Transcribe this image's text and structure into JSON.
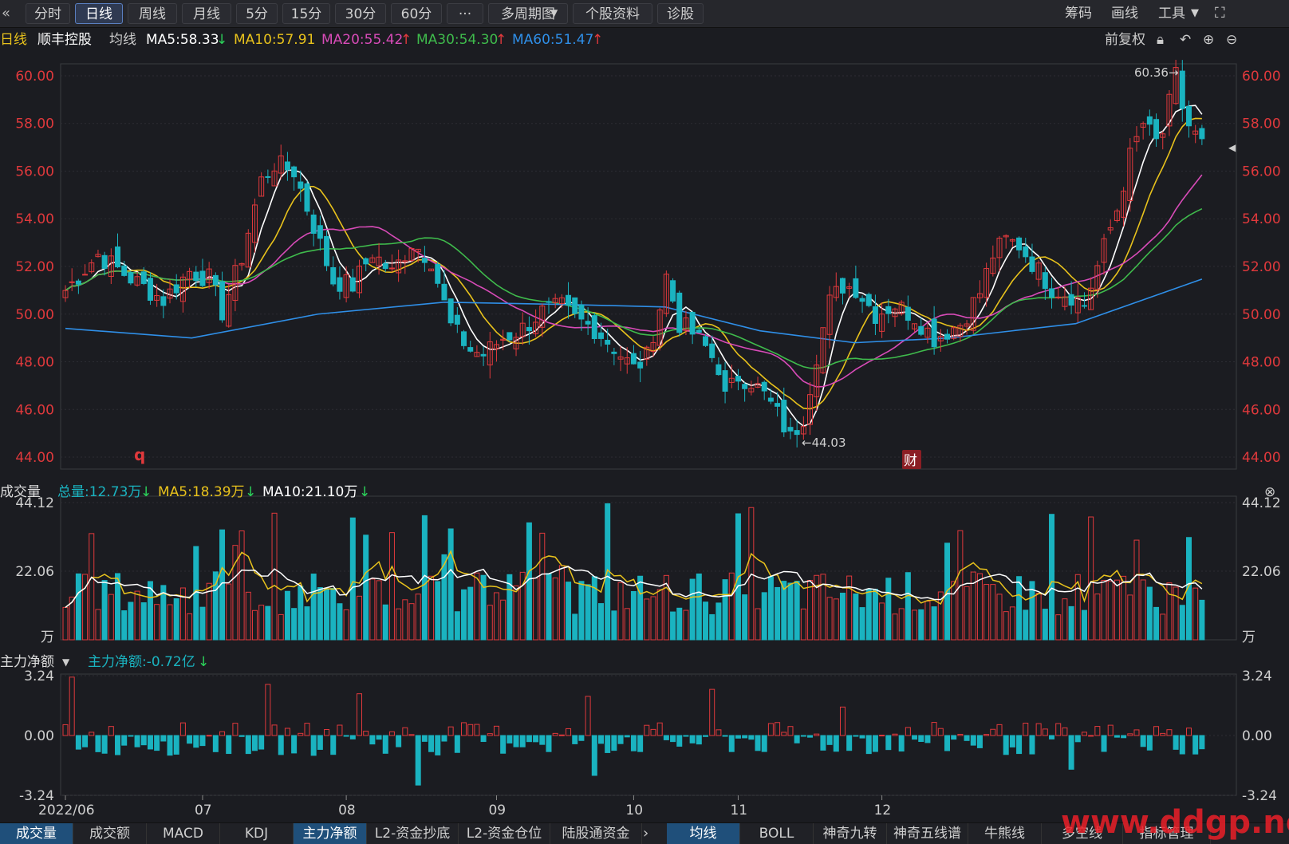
{
  "toolbar": {
    "tabs": [
      {
        "label": "分时",
        "active": false
      },
      {
        "label": "日线",
        "active": true
      },
      {
        "label": "周线",
        "active": false
      },
      {
        "label": "月线",
        "active": false
      },
      {
        "label": "5分",
        "active": false
      },
      {
        "label": "15分",
        "active": false
      },
      {
        "label": "30分",
        "active": false
      },
      {
        "label": "60分",
        "active": false
      },
      {
        "label": "···",
        "active": false
      },
      {
        "label": "多周期图",
        "active": false
      },
      {
        "label": "个股资料",
        "active": false
      },
      {
        "label": "诊股",
        "active": false
      }
    ],
    "right": [
      "筹码",
      "画线",
      "工具"
    ]
  },
  "info": {
    "period": "日线",
    "stock": "顺丰控股",
    "ma_label": "均线",
    "ma5": "MA5:58.33",
    "ma10": "MA10:57.91",
    "ma20": "MA20:55.42",
    "ma30": "MA30:54.30",
    "ma60": "MA60:51.47",
    "adjust": "前复权"
  },
  "volume_header": {
    "title": "成交量",
    "total": "总量:12.73万",
    "ma5": "MA5:18.39万",
    "ma10": "MA10:21.10万"
  },
  "flow_header": {
    "title": "主力净额",
    "value": "主力净额:-0.72亿"
  },
  "annotations": {
    "high": "60.36→",
    "low": "←44.03",
    "marker_q": "q",
    "marker_cai": "财"
  },
  "bottom_tabs_left": [
    {
      "label": "成交量",
      "active": true
    },
    {
      "label": "成交额",
      "active": false
    },
    {
      "label": "MACD",
      "active": false
    },
    {
      "label": "KDJ",
      "active": false
    },
    {
      "label": "主力净额",
      "active": true
    },
    {
      "label": "L2-资金抄底",
      "active": false
    },
    {
      "label": "L2-资金仓位",
      "active": false
    },
    {
      "label": "陆股通资金",
      "active": false
    }
  ],
  "bottom_tabs_right": [
    {
      "label": "均线",
      "active": true
    },
    {
      "label": "BOLL",
      "active": false
    },
    {
      "label": "神奇九转",
      "active": false
    },
    {
      "label": "神奇五线谱",
      "active": false
    },
    {
      "label": "牛熊线",
      "active": false
    },
    {
      "label": "多空线",
      "active": false
    },
    {
      "label": "指标管理",
      "active": false
    }
  ],
  "watermark": "www.ddgp.net",
  "colors": {
    "up": "#e0393c",
    "down": "#1ab3c0",
    "ma5": "#ffffff",
    "ma10": "#e8c21c",
    "ma20": "#d84bb8",
    "ma30": "#3fbb4c",
    "ma60": "#2f8fe8"
  },
  "chart_data": [
    {
      "type": "candlestick",
      "title": "日线 顺丰控股",
      "y_ticks": [
        "60.00",
        "58.00",
        "56.00",
        "54.00",
        "52.00",
        "50.00",
        "48.00",
        "46.00",
        "44.00"
      ],
      "ylim": [
        43.5,
        60.5
      ],
      "x_ticks": [
        "2022/06",
        "07",
        "08",
        "09",
        "10",
        "11",
        "12"
      ],
      "x_tick_index": [
        0,
        21,
        43,
        66,
        87,
        103,
        125
      ],
      "n_candles": 139,
      "anchors": [
        [
          0,
          51.0
        ],
        [
          5,
          52.5
        ],
        [
          10,
          51.5
        ],
        [
          15,
          50.6
        ],
        [
          19,
          51.8
        ],
        [
          22,
          51.5
        ],
        [
          24,
          50.1
        ],
        [
          27,
          52.4
        ],
        [
          30,
          55.6
        ],
        [
          32,
          56.3
        ],
        [
          35,
          56.0
        ],
        [
          38,
          53.7
        ],
        [
          41,
          51.4
        ],
        [
          44,
          51.2
        ],
        [
          47,
          52.6
        ],
        [
          50,
          51.7
        ],
        [
          53,
          53.0
        ],
        [
          56,
          52.3
        ],
        [
          59,
          49.5
        ],
        [
          62,
          48.5
        ],
        [
          64,
          48.3
        ],
        [
          67,
          49.0
        ],
        [
          70,
          49.4
        ],
        [
          73,
          50.1
        ],
        [
          76,
          50.3
        ],
        [
          78,
          49.8
        ],
        [
          81,
          49.4
        ],
        [
          84,
          48.6
        ],
        [
          87,
          47.7
        ],
        [
          89,
          48.2
        ],
        [
          91,
          50.3
        ],
        [
          92,
          51.6
        ],
        [
          94,
          49.6
        ],
        [
          96,
          49.2
        ],
        [
          98,
          48.6
        ],
        [
          100,
          47.8
        ],
        [
          101,
          46.5
        ],
        [
          103,
          47.4
        ],
        [
          105,
          47.2
        ],
        [
          107,
          46.6
        ],
        [
          109,
          45.8
        ],
        [
          111,
          44.8
        ],
        [
          113,
          45.7
        ],
        [
          115,
          48.3
        ],
        [
          117,
          50.5
        ],
        [
          119,
          51.2
        ],
        [
          121,
          51.1
        ],
        [
          124,
          50.0
        ],
        [
          127,
          50.4
        ],
        [
          130,
          49.9
        ],
        [
          132,
          49.3
        ],
        [
          133,
          49.0
        ],
        [
          135,
          49.3
        ],
        [
          137,
          49.6
        ],
        [
          140,
          50.9
        ],
        [
          142,
          52.5
        ],
        [
          144,
          53.1
        ],
        [
          146,
          52.9
        ],
        [
          149,
          51.8
        ],
        [
          151,
          51.1
        ],
        [
          154,
          50.8
        ],
        [
          156,
          50.4
        ],
        [
          157,
          51.2
        ],
        [
          159,
          52.8
        ],
        [
          161,
          54.4
        ],
        [
          163,
          56.6
        ],
        [
          165,
          58.0
        ],
        [
          167,
          57.2
        ],
        [
          168,
          57.6
        ],
        [
          170,
          60.0
        ],
        [
          171,
          58.7
        ],
        [
          172,
          57.9
        ],
        [
          174,
          57.1
        ]
      ],
      "ma_series": [
        "MA5",
        "MA10",
        "MA20",
        "MA30",
        "MA60"
      ],
      "ma_last": [
        58.33,
        57.91,
        55.42,
        54.3,
        51.47
      ],
      "ma60_path": [
        [
          0,
          49.4
        ],
        [
          20,
          49.0
        ],
        [
          40,
          50.0
        ],
        [
          60,
          50.5
        ],
        [
          80,
          50.4
        ],
        [
          95,
          50.3
        ],
        [
          110,
          49.3
        ],
        [
          125,
          48.8
        ],
        [
          140,
          49.0
        ],
        [
          160,
          49.6
        ],
        [
          180,
          51.47
        ]
      ],
      "high_label": 60.36,
      "low_label": 44.03
    },
    {
      "type": "bar",
      "title": "成交量",
      "y_ticks": [
        "44.12",
        "22.06",
        "万"
      ],
      "ylim": [
        0,
        44.12
      ],
      "total": 12.73,
      "ma5": 18.39,
      "ma10": 21.1
    },
    {
      "type": "bar",
      "title": "主力净额",
      "y_ticks": [
        "3.24",
        "0.00",
        "-3.24"
      ],
      "ylim": [
        -3.24,
        3.24
      ],
      "last": -0.72
    }
  ]
}
